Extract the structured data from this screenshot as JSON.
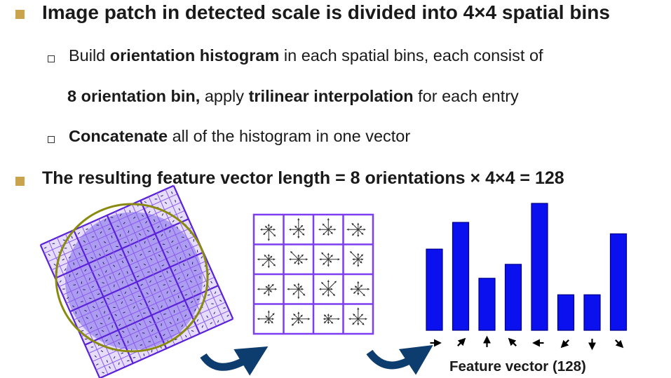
{
  "bullets": {
    "b1": "Image patch in detected scale is divided into 4×4 spatial bins",
    "b2": {
      "t1": "Build ",
      "t2": "orientation histogram",
      "t3": " in each spatial bins, each consist of"
    },
    "b2b": {
      "t1": "8 orientation bin,",
      "t2": " apply ",
      "t3": "trilinear interpolation",
      "t4": " for each entry"
    },
    "b3": {
      "t1": "Concatenate",
      "t2": " all of the histogram in one vector"
    },
    "b4": "The resulting feature vector length = 8 orientations × 4×4 = 128"
  },
  "colors": {
    "bullet": "#c9a44d",
    "bars": "#0a10ee",
    "grid": "#7d3df0",
    "circle": "#8a8a10",
    "arrow": "#0d3d6e"
  },
  "figure": {
    "caption": "Feature vector (128)",
    "histogram_values": [
      0.64,
      0.85,
      0.41,
      0.52,
      1.0,
      0.28,
      0.28,
      0.76
    ],
    "histogram_direction_icons": [
      "arrow-east",
      "arrow-northeast",
      "arrow-north",
      "arrow-northwest",
      "arrow-west",
      "arrow-southwest",
      "arrow-south",
      "arrow-southeast"
    ]
  }
}
